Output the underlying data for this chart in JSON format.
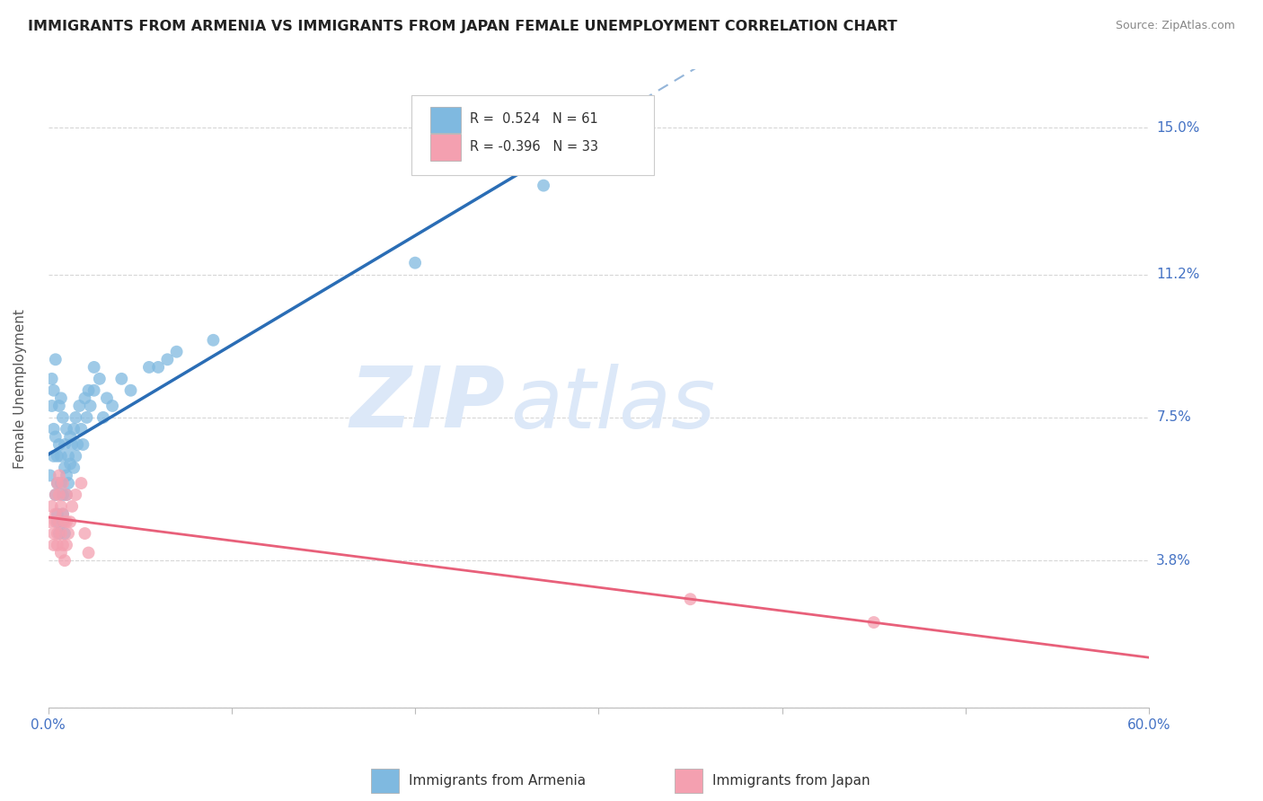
{
  "title": "IMMIGRANTS FROM ARMENIA VS IMMIGRANTS FROM JAPAN FEMALE UNEMPLOYMENT CORRELATION CHART",
  "source": "Source: ZipAtlas.com",
  "ylabel": "Female Unemployment",
  "x_min": 0.0,
  "x_max": 0.6,
  "y_min": 0.0,
  "y_max": 0.165,
  "yticks": [
    0.0,
    0.038,
    0.075,
    0.112,
    0.15
  ],
  "ytick_labels": [
    "",
    "3.8%",
    "7.5%",
    "11.2%",
    "15.0%"
  ],
  "xticks": [
    0.0,
    0.1,
    0.2,
    0.3,
    0.4,
    0.5,
    0.6
  ],
  "xtick_labels": [
    "0.0%",
    "",
    "",
    "",
    "",
    "",
    "60.0%"
  ],
  "armenia_color": "#7fb9e0",
  "armenia_color_line": "#2a6db5",
  "japan_color": "#f4a0b0",
  "japan_color_line": "#e8607a",
  "armenia_R": 0.524,
  "armenia_N": 61,
  "japan_R": -0.396,
  "japan_N": 33,
  "legend_armenia_label_r": "R =  0.524",
  "legend_armenia_label_n": "N = 61",
  "legend_japan_label_r": "R = -0.396",
  "legend_japan_label_n": "N = 33",
  "watermark_zip": "ZIP",
  "watermark_atlas": "atlas",
  "watermark_color": "#dce8f8",
  "background_color": "#ffffff",
  "grid_color": "#cccccc",
  "armenia_scatter": [
    [
      0.001,
      0.06
    ],
    [
      0.002,
      0.085
    ],
    [
      0.002,
      0.078
    ],
    [
      0.003,
      0.082
    ],
    [
      0.003,
      0.072
    ],
    [
      0.003,
      0.065
    ],
    [
      0.004,
      0.09
    ],
    [
      0.004,
      0.055
    ],
    [
      0.004,
      0.07
    ],
    [
      0.005,
      0.065
    ],
    [
      0.005,
      0.058
    ],
    [
      0.005,
      0.05
    ],
    [
      0.005,
      0.048
    ],
    [
      0.006,
      0.068
    ],
    [
      0.006,
      0.045
    ],
    [
      0.006,
      0.078
    ],
    [
      0.007,
      0.065
    ],
    [
      0.007,
      0.08
    ],
    [
      0.007,
      0.058
    ],
    [
      0.008,
      0.055
    ],
    [
      0.008,
      0.05
    ],
    [
      0.008,
      0.048
    ],
    [
      0.008,
      0.075
    ],
    [
      0.009,
      0.045
    ],
    [
      0.009,
      0.062
    ],
    [
      0.009,
      0.068
    ],
    [
      0.01,
      0.055
    ],
    [
      0.01,
      0.072
    ],
    [
      0.01,
      0.06
    ],
    [
      0.011,
      0.058
    ],
    [
      0.011,
      0.065
    ],
    [
      0.012,
      0.07
    ],
    [
      0.012,
      0.063
    ],
    [
      0.013,
      0.068
    ],
    [
      0.014,
      0.062
    ],
    [
      0.014,
      0.072
    ],
    [
      0.015,
      0.075
    ],
    [
      0.015,
      0.065
    ],
    [
      0.016,
      0.068
    ],
    [
      0.017,
      0.078
    ],
    [
      0.018,
      0.072
    ],
    [
      0.019,
      0.068
    ],
    [
      0.02,
      0.08
    ],
    [
      0.021,
      0.075
    ],
    [
      0.022,
      0.082
    ],
    [
      0.023,
      0.078
    ],
    [
      0.025,
      0.082
    ],
    [
      0.025,
      0.088
    ],
    [
      0.028,
      0.085
    ],
    [
      0.03,
      0.075
    ],
    [
      0.032,
      0.08
    ],
    [
      0.035,
      0.078
    ],
    [
      0.04,
      0.085
    ],
    [
      0.045,
      0.082
    ],
    [
      0.055,
      0.088
    ],
    [
      0.06,
      0.088
    ],
    [
      0.065,
      0.09
    ],
    [
      0.07,
      0.092
    ],
    [
      0.09,
      0.095
    ],
    [
      0.2,
      0.115
    ],
    [
      0.27,
      0.135
    ]
  ],
  "japan_scatter": [
    [
      0.001,
      0.048
    ],
    [
      0.002,
      0.052
    ],
    [
      0.003,
      0.045
    ],
    [
      0.003,
      0.042
    ],
    [
      0.004,
      0.055
    ],
    [
      0.004,
      0.05
    ],
    [
      0.004,
      0.048
    ],
    [
      0.005,
      0.058
    ],
    [
      0.005,
      0.045
    ],
    [
      0.005,
      0.042
    ],
    [
      0.006,
      0.06
    ],
    [
      0.006,
      0.055
    ],
    [
      0.006,
      0.048
    ],
    [
      0.007,
      0.052
    ],
    [
      0.007,
      0.045
    ],
    [
      0.007,
      0.04
    ],
    [
      0.008,
      0.058
    ],
    [
      0.008,
      0.05
    ],
    [
      0.008,
      0.042
    ],
    [
      0.009,
      0.048
    ],
    [
      0.009,
      0.038
    ],
    [
      0.01,
      0.055
    ],
    [
      0.01,
      0.048
    ],
    [
      0.01,
      0.042
    ],
    [
      0.011,
      0.045
    ],
    [
      0.012,
      0.048
    ],
    [
      0.013,
      0.052
    ],
    [
      0.015,
      0.055
    ],
    [
      0.018,
      0.058
    ],
    [
      0.02,
      0.045
    ],
    [
      0.022,
      0.04
    ],
    [
      0.35,
      0.028
    ],
    [
      0.45,
      0.022
    ]
  ],
  "title_color": "#222222",
  "tick_label_color": "#4472c4",
  "source_color": "#888888"
}
